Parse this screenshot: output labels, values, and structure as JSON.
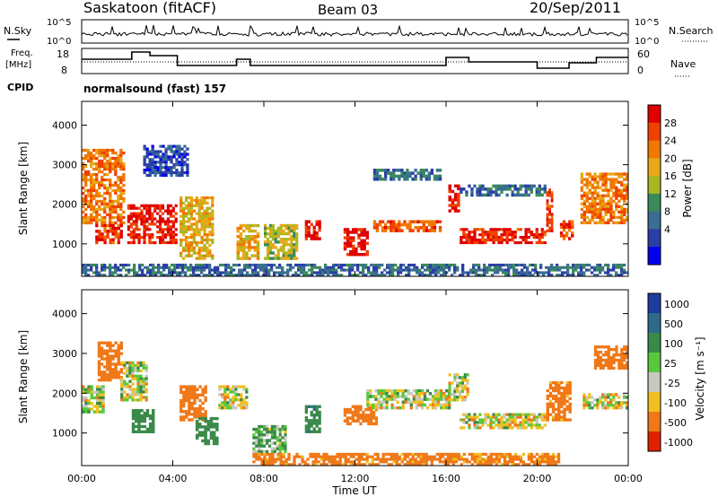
{
  "header": {
    "station": "Saskatoon (fitACF)",
    "beam": "Beam 03",
    "date": "20/Sep/2011"
  },
  "noise_panel": {
    "left_label": "N.Sky",
    "right_label": "N.Search",
    "left_ticks": [
      "10^5",
      "10^0"
    ],
    "right_ticks": [
      "10^5",
      "10^0"
    ]
  },
  "freq_panel": {
    "left_label_line1": "Freq.",
    "left_label_line2": "[MHz]",
    "right_label": "Nave",
    "left_ticks": [
      "18",
      "8"
    ],
    "right_ticks": [
      "60",
      "0"
    ]
  },
  "cpid": {
    "label": "CPID",
    "value": "normalsound (fast) 157"
  },
  "power_colorbar": {
    "label": "Power [dB]",
    "ticks": [
      "28",
      "24",
      "20",
      "16",
      "12",
      "8",
      "4"
    ],
    "colors": [
      "#e00000",
      "#f04000",
      "#f07800",
      "#e8a818",
      "#a8b820",
      "#3a8a5a",
      "#3a6c94",
      "#2a3ea8",
      "#0000f0"
    ]
  },
  "velocity_colorbar": {
    "label": "Velocity [m s⁻¹]",
    "ticks": [
      "1000",
      "500",
      "100",
      "25",
      "-25",
      "-100",
      "-500",
      "-1000"
    ],
    "colors": [
      "#1e3ca0",
      "#2e6a8a",
      "#3a8a4a",
      "#5ac83c",
      "#c8c8c0",
      "#f0c020",
      "#f07818",
      "#e02000"
    ]
  },
  "x_axis": {
    "title": "Time UT",
    "ticks": [
      "00:00",
      "04:00",
      "08:00",
      "12:00",
      "16:00",
      "20:00",
      "00:00"
    ]
  },
  "y_axis": {
    "title": "Slant Range [km]",
    "ticks": [
      "4000",
      "3000",
      "2000",
      "1000"
    ]
  },
  "chart_data": [
    {
      "type": "heatmap",
      "name": "power",
      "x_range_hours": [
        0,
        24
      ],
      "y_range_km": [
        180,
        4600
      ],
      "value_unit": "dB",
      "value_range": [
        0,
        30
      ],
      "blobs": [
        {
          "t0": 0.0,
          "t1": 1.9,
          "r0": 1500,
          "r1": 3400,
          "value": 22
        },
        {
          "t0": 0.6,
          "t1": 1.8,
          "r0": 1000,
          "r1": 1500,
          "value": 26
        },
        {
          "t0": 2.0,
          "t1": 4.2,
          "r0": 1000,
          "r1": 2000,
          "value": 28
        },
        {
          "t0": 2.7,
          "t1": 4.7,
          "r0": 2700,
          "r1": 3500,
          "value": 6
        },
        {
          "t0": 4.3,
          "t1": 5.8,
          "r0": 600,
          "r1": 2200,
          "value": 18
        },
        {
          "t0": 6.8,
          "t1": 7.8,
          "r0": 600,
          "r1": 1500,
          "value": 18
        },
        {
          "t0": 8.0,
          "t1": 9.5,
          "r0": 600,
          "r1": 1500,
          "value": 16
        },
        {
          "t0": 9.8,
          "t1": 10.5,
          "r0": 1100,
          "r1": 1600,
          "value": 28
        },
        {
          "t0": 11.5,
          "t1": 12.6,
          "r0": 700,
          "r1": 1400,
          "value": 29
        },
        {
          "t0": 12.8,
          "t1": 15.8,
          "r0": 1300,
          "r1": 1600,
          "value": 24
        },
        {
          "t0": 12.8,
          "t1": 15.8,
          "r0": 2600,
          "r1": 2900,
          "value": 8
        },
        {
          "t0": 16.1,
          "t1": 16.6,
          "r0": 1800,
          "r1": 2500,
          "value": 28
        },
        {
          "t0": 16.6,
          "t1": 20.4,
          "r0": 1000,
          "r1": 1400,
          "value": 27
        },
        {
          "t0": 16.6,
          "t1": 20.4,
          "r0": 2200,
          "r1": 2500,
          "value": 8
        },
        {
          "t0": 20.4,
          "t1": 20.7,
          "r0": 1300,
          "r1": 2400,
          "value": 26
        },
        {
          "t0": 21.0,
          "t1": 21.6,
          "r0": 1100,
          "r1": 1600,
          "value": 24
        },
        {
          "t0": 21.9,
          "t1": 24.0,
          "r0": 1500,
          "r1": 2800,
          "value": 22
        },
        {
          "t0": 0.0,
          "t1": 24.0,
          "r0": 180,
          "r1": 500,
          "value": 8
        }
      ]
    },
    {
      "type": "heatmap",
      "name": "velocity",
      "x_range_hours": [
        0,
        24
      ],
      "y_range_km": [
        180,
        4600
      ],
      "value_unit": "m s-1",
      "value_range": [
        -1000,
        1000
      ],
      "blobs": [
        {
          "t0": 0.0,
          "t1": 1.0,
          "r0": 1500,
          "r1": 2200,
          "value": 0
        },
        {
          "t0": 0.7,
          "t1": 1.8,
          "r0": 2300,
          "r1": 3300,
          "value": -300
        },
        {
          "t0": 1.7,
          "t1": 2.9,
          "r0": 1800,
          "r1": 2800,
          "value": 0
        },
        {
          "t0": 2.2,
          "t1": 3.2,
          "r0": 1000,
          "r1": 1600,
          "value": 300
        },
        {
          "t0": 4.3,
          "t1": 5.5,
          "r0": 1300,
          "r1": 2200,
          "value": -300
        },
        {
          "t0": 5.0,
          "t1": 6.0,
          "r0": 700,
          "r1": 1400,
          "value": 300
        },
        {
          "t0": 6.0,
          "t1": 7.3,
          "r0": 1600,
          "r1": 2200,
          "value": 0
        },
        {
          "t0": 7.5,
          "t1": 9.0,
          "r0": 500,
          "r1": 1200,
          "value": 100
        },
        {
          "t0": 9.8,
          "t1": 10.5,
          "r0": 1000,
          "r1": 1700,
          "value": 400
        },
        {
          "t0": 11.5,
          "t1": 13.0,
          "r0": 1200,
          "r1": 1700,
          "value": -300
        },
        {
          "t0": 12.5,
          "t1": 16.2,
          "r0": 1600,
          "r1": 2100,
          "value": 0
        },
        {
          "t0": 16.1,
          "t1": 17.0,
          "r0": 1800,
          "r1": 2500,
          "value": 0
        },
        {
          "t0": 16.6,
          "t1": 20.4,
          "r0": 1100,
          "r1": 1500,
          "value": 0
        },
        {
          "t0": 20.4,
          "t1": 21.5,
          "r0": 1300,
          "r1": 2300,
          "value": -200
        },
        {
          "t0": 22.0,
          "t1": 24.0,
          "r0": 1600,
          "r1": 2000,
          "value": 0
        },
        {
          "t0": 22.5,
          "t1": 24.0,
          "r0": 2600,
          "r1": 3200,
          "value": -300
        },
        {
          "t0": 7.5,
          "t1": 21.0,
          "r0": 180,
          "r1": 500,
          "value": -200
        }
      ]
    }
  ]
}
